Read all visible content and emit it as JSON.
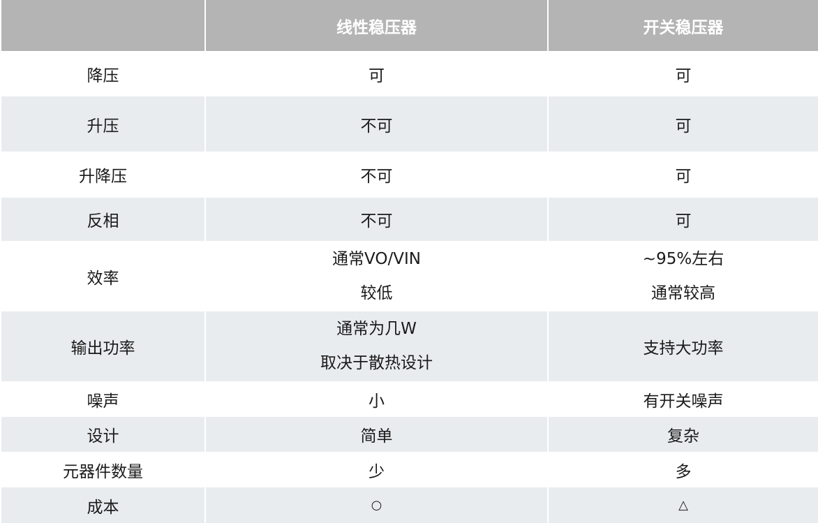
{
  "header": [
    "",
    "线性稳压器",
    "开关稳压器"
  ],
  "colors": {
    "header_bg": "#b4b4b4",
    "alt_row_bg": "#e9ecef",
    "header_text": "#ffffff"
  },
  "rows": [
    {
      "label": "降压",
      "linear": [
        "可"
      ],
      "switching": [
        "可"
      ]
    },
    {
      "label": "升压",
      "linear": [
        "不可"
      ],
      "switching": [
        "可"
      ]
    },
    {
      "label": "升降压",
      "linear": [
        "不可"
      ],
      "switching": [
        "可"
      ]
    },
    {
      "label": "反相",
      "linear": [
        "不可"
      ],
      "switching": [
        "可"
      ]
    },
    {
      "label": "效率",
      "linear": [
        "通常VO/VIN",
        "较低"
      ],
      "switching": [
        "~95%左右",
        "通常较高"
      ]
    },
    {
      "label": "输出功率",
      "linear": [
        "通常为几W",
        "取决于散热设计"
      ],
      "switching": [
        "支持大功率"
      ]
    },
    {
      "label": "噪声",
      "linear": [
        "小"
      ],
      "switching": [
        "有开关噪声"
      ]
    },
    {
      "label": "设计",
      "linear": [
        "简单"
      ],
      "switching": [
        "复杂"
      ]
    },
    {
      "label": "元器件数量",
      "linear": [
        "少"
      ],
      "switching": [
        "多"
      ]
    },
    {
      "label": "成本",
      "linear": [
        "○"
      ],
      "switching": [
        "△"
      ]
    }
  ]
}
